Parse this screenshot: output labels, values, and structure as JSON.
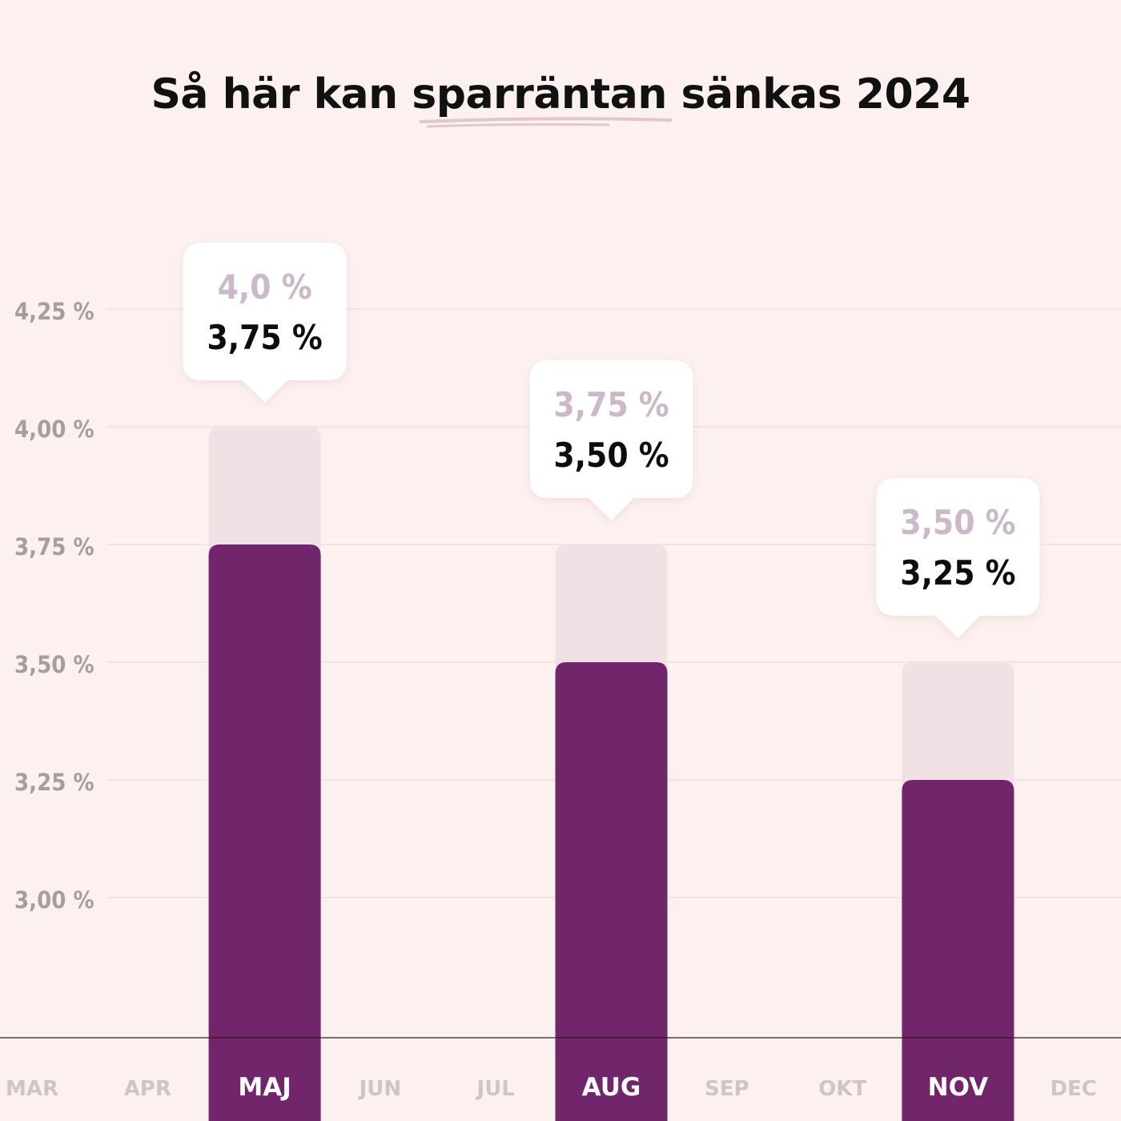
{
  "title": {
    "before": "Så här kan ",
    "highlight": "sparräntan",
    "after": " sänkas 2024"
  },
  "colors": {
    "background": "#fdf1ef",
    "bar_current": "#71266b",
    "bar_previous": "#f1e1e4",
    "grid": "#ecdcdc",
    "axis_text": "#a89c9c",
    "month_inactive": "#cec5c6",
    "callout_previous_text": "#cbb8c8",
    "underline": "#e2c6cc"
  },
  "chart_data": {
    "type": "bar",
    "title": "Så här kan sparräntan sänkas 2024",
    "categories": [
      "MAR",
      "APR",
      "MAJ",
      "JUN",
      "JUL",
      "AUG",
      "SEP",
      "OKT",
      "NOV",
      "DEC"
    ],
    "y_ticks": [
      "3,00 %",
      "3,25 %",
      "3,50 %",
      "3,75 %",
      "4,00 %",
      "4,25 %"
    ],
    "y_tick_values": [
      3.0,
      3.25,
      3.5,
      3.75,
      4.0,
      4.25
    ],
    "ylim": [
      2.7,
      4.4
    ],
    "grid": true,
    "bars": [
      {
        "category": "MAJ",
        "previous": 4.0,
        "current": 3.75,
        "previous_label": "4,0 %",
        "current_label": "3,75 %"
      },
      {
        "category": "AUG",
        "previous": 3.75,
        "current": 3.5,
        "previous_label": "3,75 %",
        "current_label": "3,50 %"
      },
      {
        "category": "NOV",
        "previous": 3.5,
        "current": 3.25,
        "previous_label": "3,50 %",
        "current_label": "3,25 %"
      }
    ]
  }
}
